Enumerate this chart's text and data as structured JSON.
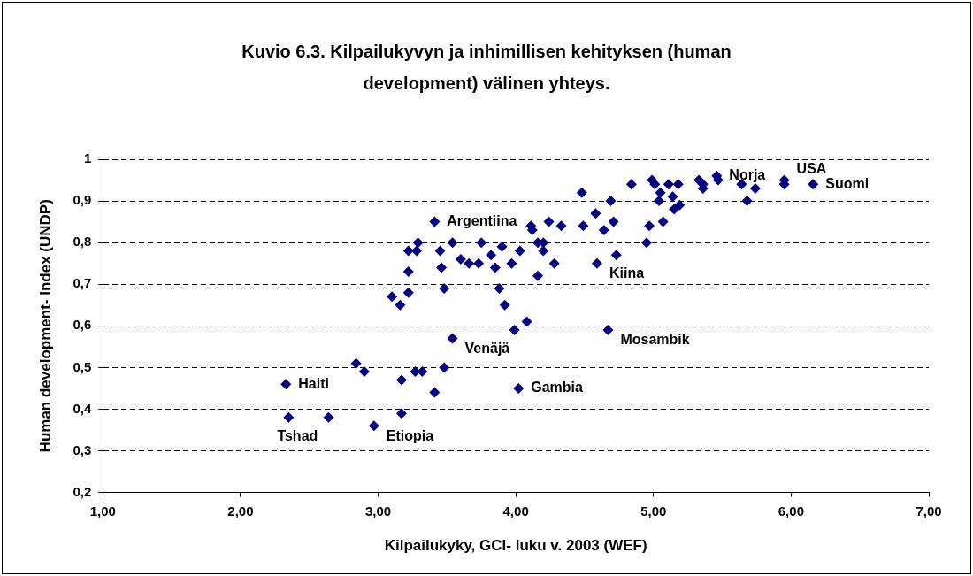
{
  "chart_data": {
    "type": "scatter",
    "title": "Kuvio 6.3. Kilpailukyvyn ja inhimillisen kehityksen (human development) välinen yhteys.",
    "xlabel": "Kilpailukyky, GCI- luku v. 2003 (WEF)",
    "ylabel": "Human development- Index (UNDP)",
    "xlim": [
      1,
      7
    ],
    "xticks": [
      {
        "value": 1,
        "label": "1,00"
      },
      {
        "value": 2,
        "label": "2,00"
      },
      {
        "value": 3,
        "label": "3,00"
      },
      {
        "value": 4,
        "label": "4,00"
      },
      {
        "value": 5,
        "label": "5,00"
      },
      {
        "value": 6,
        "label": "6,00"
      },
      {
        "value": 7,
        "label": "7,00"
      }
    ],
    "ylim": [
      0.2,
      1
    ],
    "yticks": [
      {
        "value": 0.2,
        "label": "0,2"
      },
      {
        "value": 0.3,
        "label": "0,3"
      },
      {
        "value": 0.4,
        "label": "0,4"
      },
      {
        "value": 0.5,
        "label": "0,5"
      },
      {
        "value": 0.6,
        "label": "0,6"
      },
      {
        "value": 0.7,
        "label": "0,7"
      },
      {
        "value": 0.8,
        "label": "0,8"
      },
      {
        "value": 0.9,
        "label": "0,9"
      },
      1
    ],
    "grid": "y",
    "line_style": "dashed",
    "marker": "diamond",
    "legend": false,
    "series": [
      {
        "color": "#000080",
        "x": [
          2.33,
          2.35,
          2.64,
          2.84,
          2.9,
          2.97,
          3.17,
          3.17,
          3.27,
          3.32,
          3.48,
          3.41,
          4.02,
          3.54,
          4.48,
          3.41,
          3.1,
          3.16,
          3.22,
          3.22,
          3.22,
          3.29,
          3.28,
          3.45,
          3.46,
          3.48,
          3.54,
          3.6,
          3.66,
          3.73,
          3.75,
          3.82,
          3.85,
          3.9,
          3.88,
          3.92,
          3.97,
          4.03,
          3.99,
          4.08,
          4.11,
          4.12,
          4.16,
          4.2,
          4.2,
          4.16,
          4.28,
          4.24,
          4.33,
          4.49,
          4.58,
          4.69,
          4.71,
          4.64,
          4.59,
          4.73,
          4.95,
          4.97,
          5.07,
          4.84,
          4.99,
          5.01,
          5.05,
          5.04,
          5.11,
          5.14,
          5.18,
          5.15,
          5.19,
          5.33,
          5.36,
          5.36,
          5.46,
          5.47,
          5.64,
          5.68,
          5.74,
          5.95,
          5.95,
          6.16,
          4.67
        ],
        "values": [
          0.46,
          0.38,
          0.38,
          0.51,
          0.49,
          0.36,
          0.47,
          0.39,
          0.49,
          0.49,
          0.5,
          0.44,
          0.45,
          0.57,
          0.92,
          0.85,
          0.67,
          0.65,
          0.68,
          0.73,
          0.78,
          0.8,
          0.78,
          0.78,
          0.74,
          0.69,
          0.8,
          0.76,
          0.75,
          0.75,
          0.8,
          0.77,
          0.74,
          0.79,
          0.69,
          0.65,
          0.75,
          0.78,
          0.59,
          0.61,
          0.84,
          0.83,
          0.8,
          0.8,
          0.78,
          0.72,
          0.75,
          0.85,
          0.84,
          0.84,
          0.87,
          0.9,
          0.85,
          0.83,
          0.75,
          0.77,
          0.8,
          0.84,
          0.85,
          0.94,
          0.95,
          0.94,
          0.92,
          0.9,
          0.94,
          0.91,
          0.94,
          0.88,
          0.89,
          0.95,
          0.94,
          0.93,
          0.96,
          0.95,
          0.94,
          0.9,
          0.93,
          0.95,
          0.94,
          0.94,
          0.59
        ]
      }
    ],
    "annotations": [
      {
        "text": "Haiti",
        "x": 2.33,
        "y": 0.46
      },
      {
        "text": "Tshad",
        "x": 2.35,
        "y": 0.38
      },
      {
        "text": "Etiopia",
        "x": 2.97,
        "y": 0.36
      },
      {
        "text": "Venäjä",
        "x": 3.54,
        "y": 0.57
      },
      {
        "text": "Gambia",
        "x": 4.02,
        "y": 0.45
      },
      {
        "text": "Argentiina",
        "x": 3.41,
        "y": 0.85
      },
      {
        "text": "Kiina",
        "x": 4.59,
        "y": 0.75
      },
      {
        "text": "Mosambik",
        "x": 4.67,
        "y": 0.59
      },
      {
        "text": "Norja",
        "x": 5.46,
        "y": 0.96
      },
      {
        "text": "USA",
        "x": 5.95,
        "y": 0.95
      },
      {
        "text": "Suomi",
        "x": 6.16,
        "y": 0.94
      }
    ]
  }
}
